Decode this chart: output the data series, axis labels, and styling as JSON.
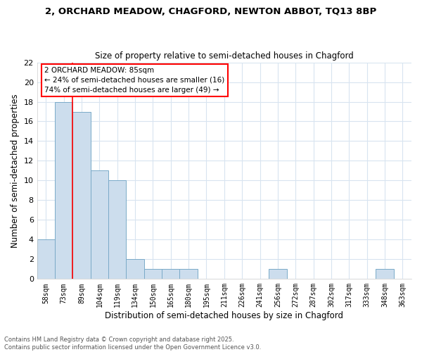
{
  "title": "2, ORCHARD MEADOW, CHAGFORD, NEWTON ABBOT, TQ13 8BP",
  "subtitle": "Size of property relative to semi-detached houses in Chagford",
  "xlabel": "Distribution of semi-detached houses by size in Chagford",
  "ylabel": "Number of semi-detached properties",
  "footer_line1": "Contains HM Land Registry data © Crown copyright and database right 2025.",
  "footer_line2": "Contains public sector information licensed under the Open Government Licence v3.0.",
  "bin_labels": [
    "58sqm",
    "73sqm",
    "89sqm",
    "104sqm",
    "119sqm",
    "134sqm",
    "150sqm",
    "165sqm",
    "180sqm",
    "195sqm",
    "211sqm",
    "226sqm",
    "241sqm",
    "256sqm",
    "272sqm",
    "287sqm",
    "302sqm",
    "317sqm",
    "333sqm",
    "348sqm",
    "363sqm"
  ],
  "counts": [
    4,
    18,
    17,
    11,
    10,
    2,
    1,
    1,
    1,
    0,
    0,
    0,
    0,
    1,
    0,
    0,
    0,
    0,
    0,
    1,
    0
  ],
  "bar_color": "#ccdded",
  "bar_edge_color": "#7aaac8",
  "red_line_x": 1.5,
  "annotation_title": "2 ORCHARD MEADOW: 85sqm",
  "annotation_line1": "← 24% of semi-detached houses are smaller (16)",
  "annotation_line2": "74% of semi-detached houses are larger (49) →",
  "ylim": [
    0,
    22
  ],
  "yticks": [
    0,
    2,
    4,
    6,
    8,
    10,
    12,
    14,
    16,
    18,
    20,
    22
  ],
  "background_color": "#ffffff",
  "grid_color": "#d8e4f0"
}
